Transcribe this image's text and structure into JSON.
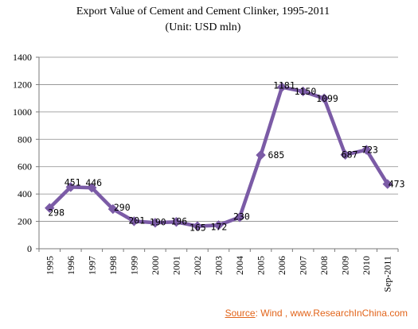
{
  "chart_data": {
    "type": "line",
    "title": "Export Value of Cement and Cement Clinker, 1995-2011",
    "subtitle": "(Unit: USD mln)",
    "categories": [
      "1995",
      "1996",
      "1997",
      "1998",
      "1999",
      "2000",
      "2001",
      "2002",
      "2003",
      "2004",
      "2005",
      "2006",
      "2007",
      "2008",
      "2009",
      "2010",
      "Sep-2011"
    ],
    "series": [
      {
        "values": [
          298,
          451,
          446,
          290,
          201,
          190,
          196,
          165,
          172,
          230,
          685,
          1181,
          1150,
          1099,
          687,
          723,
          473
        ]
      }
    ],
    "ylim": [
      0,
      1400
    ],
    "yticks": [
      0,
      200,
      400,
      600,
      800,
      1000,
      1200,
      1400
    ],
    "grid": true,
    "legend": "none",
    "xlabel": "",
    "ylabel": "",
    "colors": {
      "line": "#7b5ba6",
      "marker": "#7b5ba6",
      "grid": "#8a8a8a"
    }
  },
  "source": {
    "label": "Source",
    "text": ": Wind , www.ResearchInChina.com",
    "color": "#e2641a"
  }
}
